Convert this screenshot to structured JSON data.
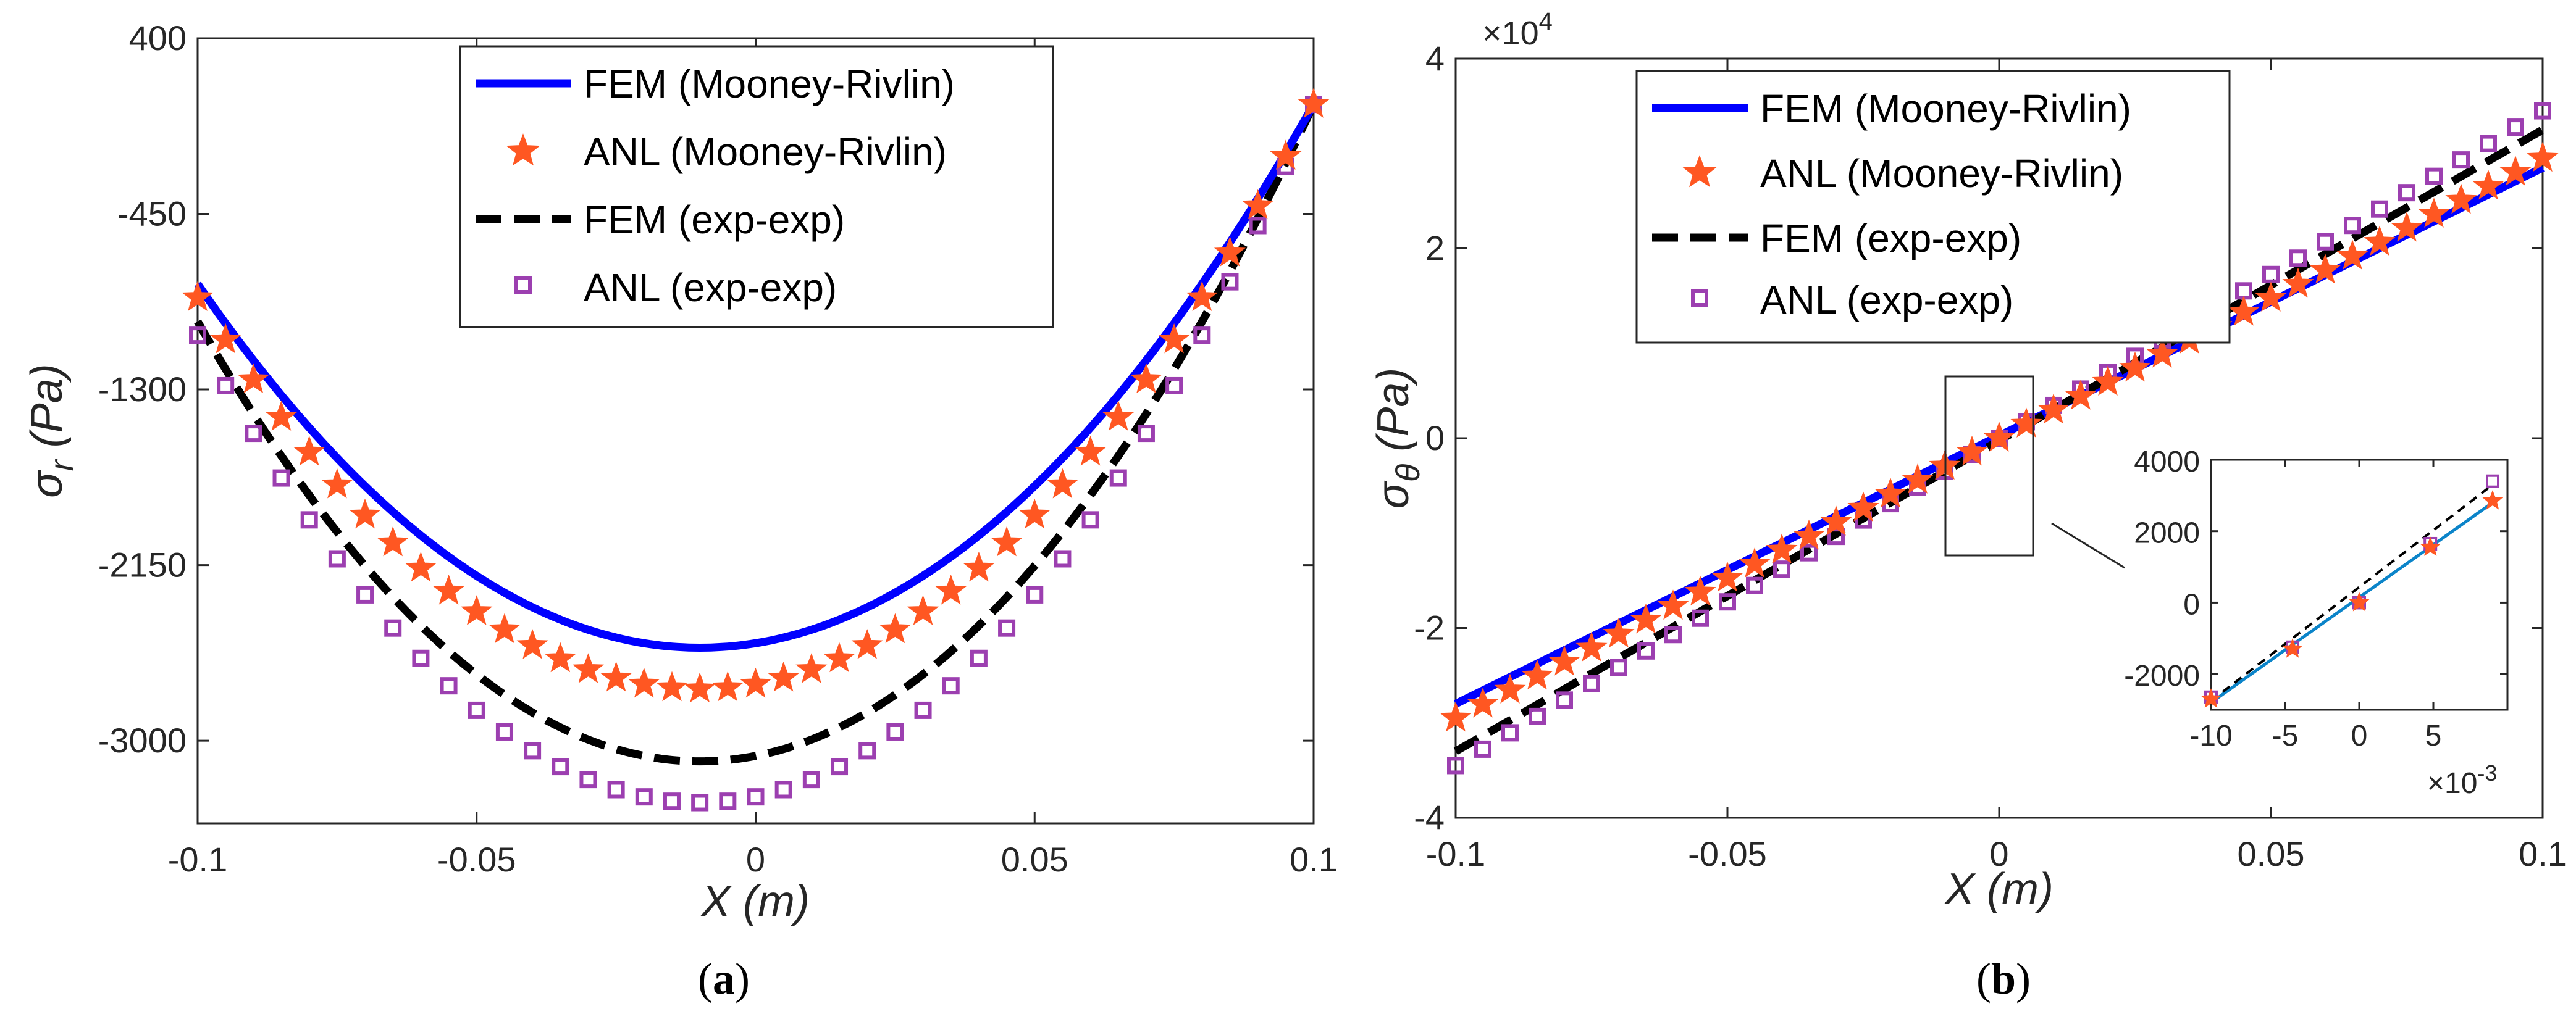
{
  "colors": {
    "fem_mr": "#0000ff",
    "anl_mr": "#ff5722",
    "fem_exp": "#000000",
    "anl_exp": "#9c3fb0",
    "inset_fem": "#0b84c9"
  },
  "chart_data": [
    {
      "type": "line",
      "panel_label_open": "(",
      "panel_label_letter": "a",
      "panel_label_close": ")",
      "xlabel": "X (m)",
      "ylabel_main": "σ",
      "ylabel_sub": "r",
      "ylabel_unit": " (Pa)",
      "xlim": [
        -0.1,
        0.1
      ],
      "ylim": [
        -3400,
        400
      ],
      "xticks": [
        -0.1,
        -0.05,
        0,
        0.05,
        0.1
      ],
      "xtick_labels": [
        "-0.1",
        "-0.05",
        "0",
        "0.05",
        "0.1"
      ],
      "yticks": [
        400,
        -450,
        -1300,
        -2150,
        -3000
      ],
      "ytick_labels": [
        "400",
        "-450",
        "-1300",
        "-2150",
        "-3000"
      ],
      "legend_position": "top-center",
      "series": [
        {
          "name": "FEM (Mooney-Rivlin)",
          "style": "line",
          "vertex_x": -0.01,
          "min": -2550,
          "end_value": 80
        },
        {
          "name": "ANL (Mooney-Rivlin)",
          "style": "star",
          "vertex_x": -0.01,
          "min": -2750,
          "end_value": 80
        },
        {
          "name": "FEM (exp-exp)",
          "style": "dash",
          "vertex_x": -0.01,
          "min": -3100,
          "end_value": 80
        },
        {
          "name": "ANL (exp-exp)",
          "style": "square",
          "vertex_x": -0.01,
          "min": -3300,
          "end_value": 80
        }
      ]
    },
    {
      "type": "line",
      "panel_label_open": "(",
      "panel_label_letter": "b",
      "panel_label_close": ")",
      "xlabel": "X (m)",
      "ylabel_main": "σ",
      "ylabel_sub": "θ",
      "ylabel_unit": " (Pa)",
      "multiplier_base": "×10",
      "multiplier_exp": "4",
      "xlim": [
        -0.1,
        0.1
      ],
      "ylim": [
        -4,
        4
      ],
      "xticks": [
        -0.1,
        -0.05,
        0,
        0.05,
        0.1
      ],
      "xtick_labels": [
        "-0.1",
        "-0.05",
        "0",
        "0.05",
        "0.1"
      ],
      "yticks": [
        4,
        2,
        0,
        -2,
        -4
      ],
      "ytick_labels": [
        "4",
        "2",
        "0",
        "-2",
        "-4"
      ],
      "legend_position": "top-left",
      "series": [
        {
          "name": "FEM (Mooney-Rivlin)",
          "style": "line",
          "y_at_xmin": -2.8,
          "y_at_xmax": 2.85
        },
        {
          "name": "ANL (Mooney-Rivlin)",
          "style": "star",
          "y_at_xmin": -2.95,
          "y_at_xmax": 2.95
        },
        {
          "name": "FEM (exp-exp)",
          "style": "dash",
          "y_at_xmin": -3.3,
          "y_at_xmax": 3.25
        },
        {
          "name": "ANL (exp-exp)",
          "style": "square",
          "y_at_xmin": -3.45,
          "y_at_xmax": 3.45
        }
      ],
      "inset": {
        "xlim": [
          -10,
          10
        ],
        "ylim": [
          -3000,
          4000
        ],
        "xticks": [
          -10,
          -5,
          0,
          5
        ],
        "xtick_labels": [
          "-10",
          "-5",
          "0",
          "5"
        ],
        "yticks": [
          4000,
          2000,
          0,
          -2000
        ],
        "ytick_labels": [
          "4000",
          "2000",
          "0",
          "-2000"
        ],
        "multiplier_base": "×10",
        "multiplier_exp": "-3",
        "fem_line": [
          [
            -10,
            -2800
          ],
          [
            9,
            2800
          ]
        ],
        "dash_line": [
          [
            -10,
            -2750
          ],
          [
            9,
            3300
          ]
        ],
        "stars": [
          [
            -10,
            -2700
          ],
          [
            -4.5,
            -1300
          ],
          [
            0,
            0
          ],
          [
            4.8,
            1550
          ],
          [
            9,
            2850
          ]
        ],
        "squares": [
          [
            -10,
            -2650
          ],
          [
            -4.5,
            -1250
          ],
          [
            0,
            0
          ],
          [
            4.8,
            1650
          ],
          [
            9,
            3400
          ]
        ]
      }
    }
  ]
}
